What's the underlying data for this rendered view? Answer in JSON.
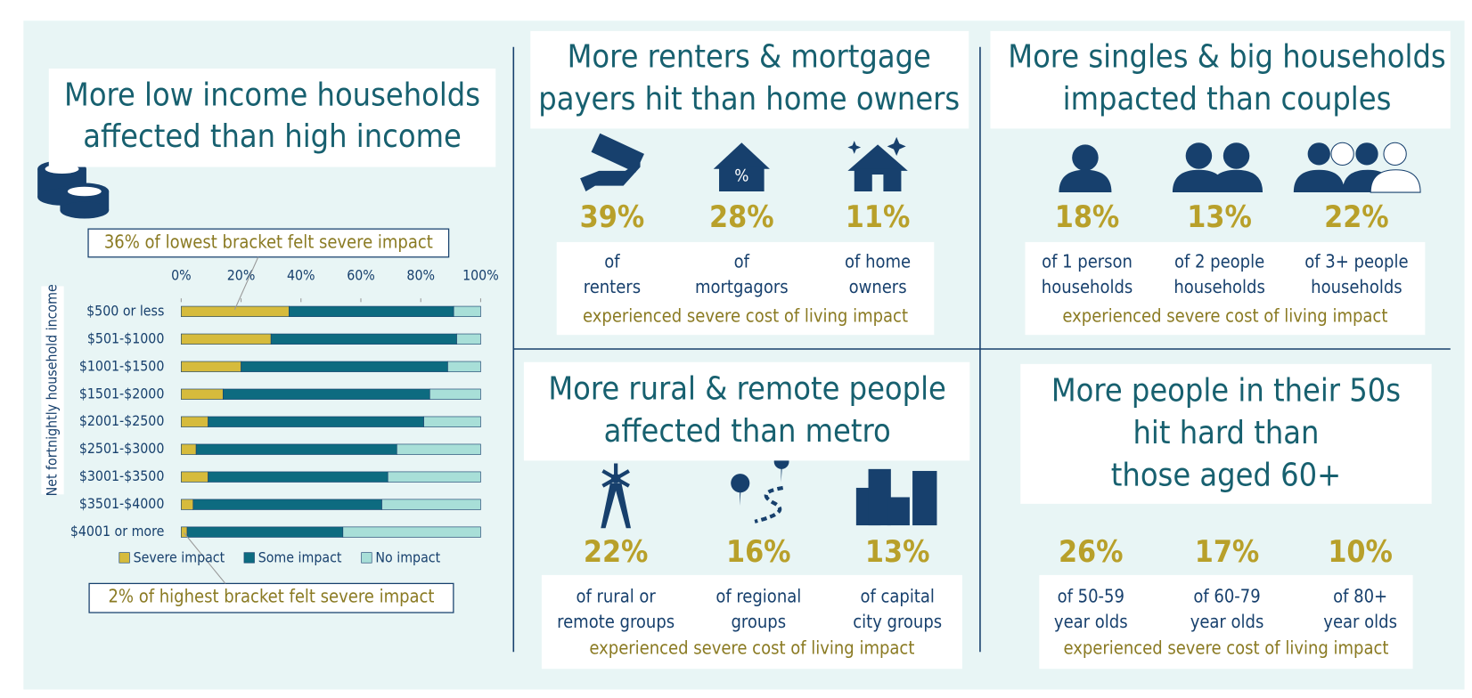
{
  "chart_data": {
    "type": "bar",
    "orientation": "horizontal",
    "stacked": true,
    "title": [
      "More low income households",
      "affected than high income"
    ],
    "y_label": "Net fortnightly household income",
    "categories": [
      "$500 or less",
      "$501-$1000",
      "$1001-$1500",
      "$1501-$2000",
      "$2001-$2500",
      "$2501-$3000",
      "$3001-$3500",
      "$3501-$4000",
      "$4001 or more"
    ],
    "series": [
      {
        "name": "Severe impact",
        "color": "#d6bb3c",
        "values": [
          36,
          30,
          20,
          14,
          9,
          5,
          9,
          4,
          2
        ]
      },
      {
        "name": "Some impact",
        "color": "#0d6b80",
        "values": [
          55,
          62,
          69,
          69,
          72,
          67,
          60,
          63,
          52
        ]
      },
      {
        "name": "No impact",
        "color": "#a8dfd8",
        "values": [
          9,
          8,
          11,
          17,
          19,
          28,
          31,
          33,
          46
        ]
      }
    ],
    "xlim": [
      0,
      100
    ],
    "xticks": [
      {
        "value": 0,
        "label": "0%"
      },
      {
        "value": 20,
        "label": "20%"
      },
      {
        "value": 40,
        "label": "40%"
      },
      {
        "value": 60,
        "label": "60%"
      },
      {
        "value": 80,
        "label": "80%"
      },
      {
        "value": 100,
        "label": "100%"
      }
    ],
    "legend": "bottom",
    "annotations": [
      "36% of lowest bracket felt severe impact",
      "2% of highest bracket felt severe impact"
    ]
  },
  "panels": [
    {
      "title": [
        "More renters & mortgage",
        "payers hit than home owners"
      ],
      "items": [
        {
          "value": "39%",
          "label": [
            "of",
            "renters"
          ]
        },
        {
          "value": "28%",
          "label": [
            "of",
            "mortgagors"
          ]
        },
        {
          "value": "11%",
          "label": [
            "of home",
            "owners"
          ]
        }
      ],
      "footer": "experienced severe cost of living impact"
    },
    {
      "title": [
        "More singles & big households",
        "impacted than couples"
      ],
      "items": [
        {
          "value": "18%",
          "label": [
            "of 1 person",
            "households"
          ]
        },
        {
          "value": "13%",
          "label": [
            "of 2 people",
            "households"
          ]
        },
        {
          "value": "22%",
          "label": [
            "of 3+ people",
            "households"
          ]
        }
      ],
      "footer": "experienced severe cost of living impact"
    },
    {
      "title": [
        "More rural & remote people",
        "affected than metro"
      ],
      "items": [
        {
          "value": "22%",
          "label": [
            "of rural or",
            "remote groups"
          ]
        },
        {
          "value": "16%",
          "label": [
            "of regional",
            "groups"
          ]
        },
        {
          "value": "13%",
          "label": [
            "of capital",
            "city groups"
          ]
        }
      ],
      "footer": "experienced severe cost of living impact"
    },
    {
      "title": [
        "More people in their 50s",
        "hit hard than",
        "those aged 60+"
      ],
      "items": [
        {
          "value": "26%",
          "label": [
            "of 50-59",
            "year olds"
          ]
        },
        {
          "value": "17%",
          "label": [
            "of 60-79",
            "year olds"
          ]
        },
        {
          "value": "10%",
          "label": [
            "of 80+",
            "year olds"
          ]
        }
      ],
      "footer": "experienced severe cost of living impact"
    }
  ]
}
